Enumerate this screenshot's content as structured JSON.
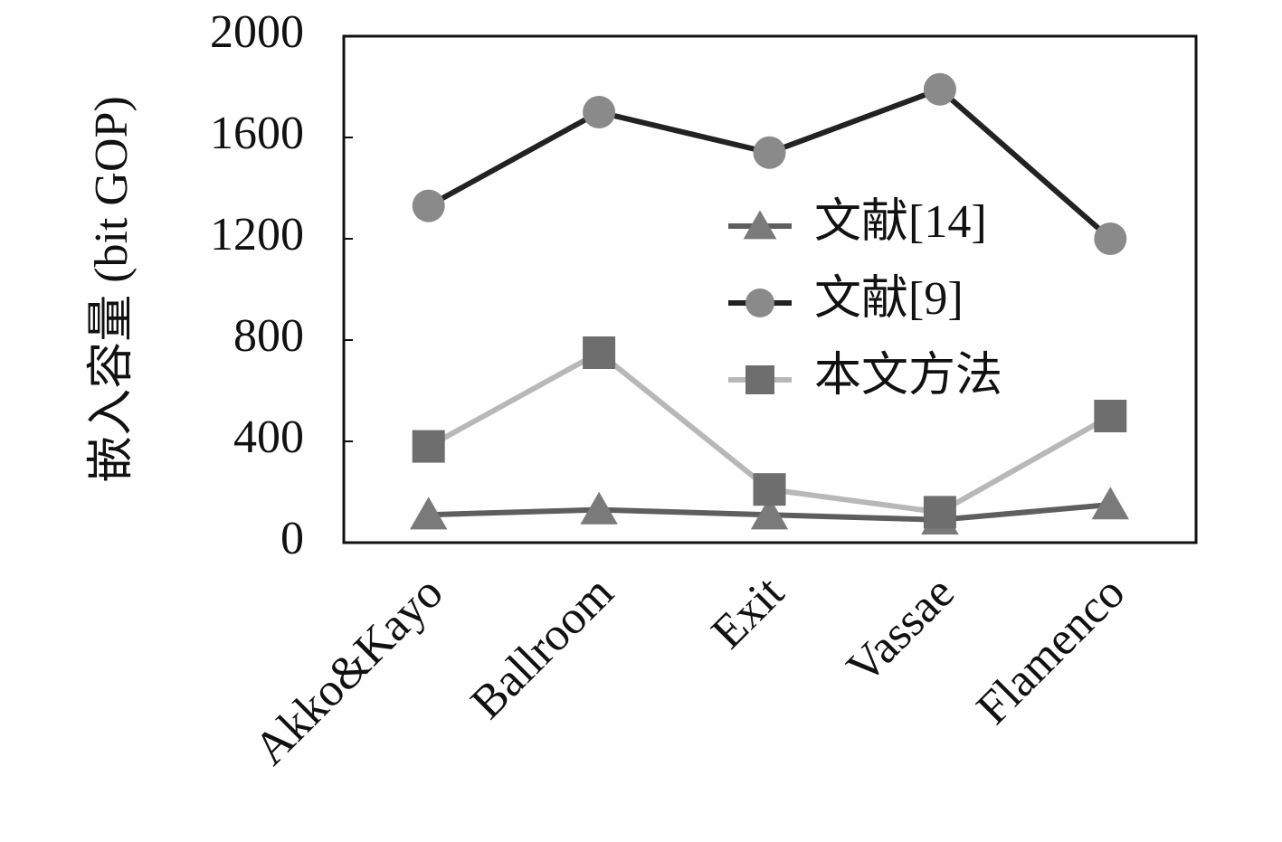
{
  "chart_data": {
    "type": "line",
    "y_label": "嵌入容量 (bit GOP)",
    "categories": [
      "Akko&Kayo",
      "Ballroom",
      "Exit",
      "Vassae",
      "Flamenco"
    ],
    "series": [
      {
        "name": "文献[14]",
        "color": "#5e5e5e",
        "marker_color": "#7a7a7a",
        "marker": "triangle",
        "values": [
          110,
          130,
          110,
          90,
          150
        ]
      },
      {
        "name": "文献[9]",
        "color": "#222222",
        "marker_color": "#8a8a8a",
        "marker": "circle",
        "values": [
          1330,
          1700,
          1540,
          1790,
          1200
        ]
      },
      {
        "name": "本文方法",
        "color": "#b8b8b8",
        "marker_color": "#6e6e6e",
        "marker": "square",
        "values": [
          380,
          750,
          210,
          120,
          500
        ]
      }
    ],
    "ylim": [
      0,
      2000
    ],
    "yticks": [
      0,
      400,
      800,
      1200,
      1600,
      2000
    ],
    "legend": "center right"
  }
}
